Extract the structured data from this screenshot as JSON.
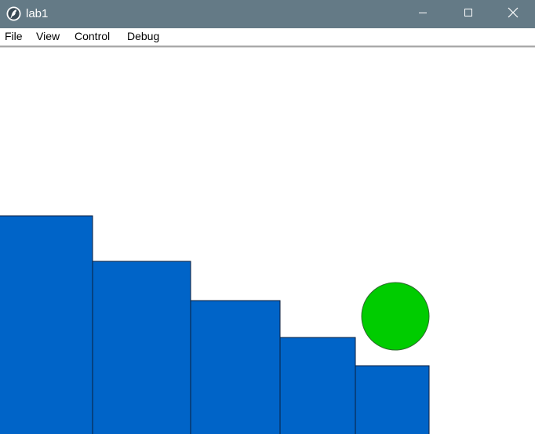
{
  "window": {
    "title": "lab1",
    "icon": "app-feather-icon",
    "controls": {
      "minimize_icon": "minimize-icon",
      "maximize_icon": "maximize-icon",
      "close_icon": "close-icon"
    }
  },
  "menu": {
    "items": [
      {
        "label": "File"
      },
      {
        "label": "View"
      },
      {
        "label": "Control"
      },
      {
        "label": "Debug"
      }
    ]
  },
  "scene": {
    "colors": {
      "titlebar": "#647a86",
      "block_fill": "#0064c8",
      "block_stroke": "#0a1e3c",
      "ball_fill": "#00cc00",
      "ball_stroke": "#2e6b2e"
    },
    "blocks_count_shown": 5,
    "ball_icon": "ball"
  }
}
